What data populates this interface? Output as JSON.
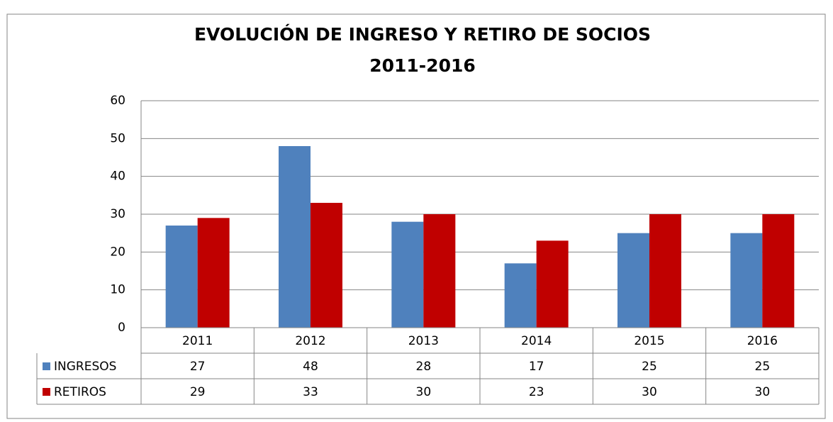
{
  "chart_data": {
    "type": "bar",
    "title": "EVOLUCIÓN DE INGRESO Y RETIRO DE SOCIOS",
    "subtitle": "2011-2016",
    "categories": [
      "2011",
      "2012",
      "2013",
      "2014",
      "2015",
      "2016"
    ],
    "series": [
      {
        "name": "INGRESOS",
        "color": "#4f81bd",
        "values": [
          27,
          48,
          28,
          17,
          25,
          25
        ]
      },
      {
        "name": "RETIROS",
        "color": "#c00000",
        "values": [
          29,
          33,
          30,
          23,
          30,
          30
        ]
      }
    ],
    "ylim": [
      0,
      60
    ],
    "yticks": [
      0,
      10,
      20,
      30,
      40,
      50,
      60
    ],
    "grid": true
  }
}
